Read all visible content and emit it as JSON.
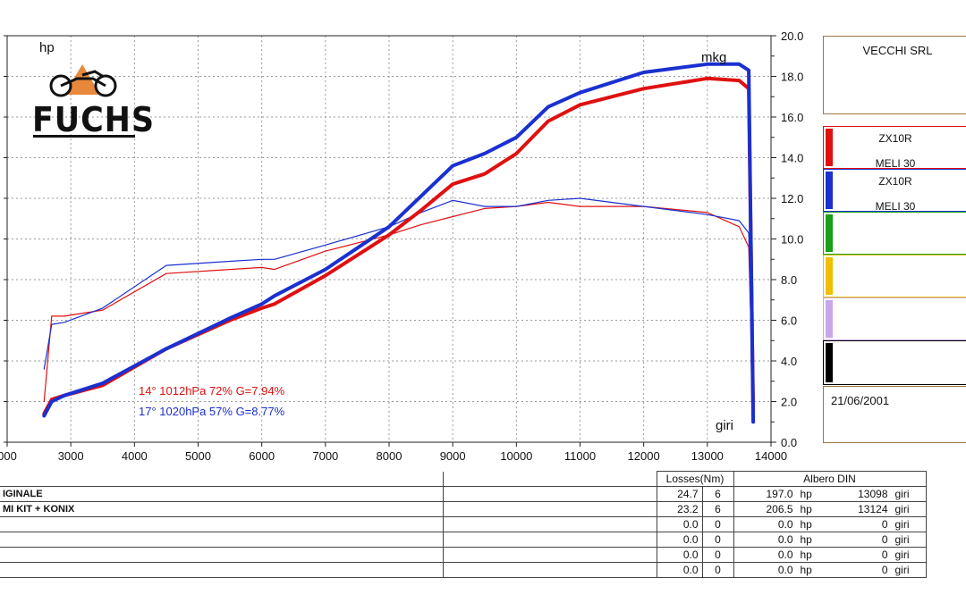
{
  "chart_data": {
    "type": "line",
    "x": [
      2580,
      2700,
      2900,
      3500,
      4500,
      5500,
      6000,
      6200,
      7000,
      8000,
      8500,
      9000,
      9500,
      10000,
      10500,
      11000,
      12000,
      13000,
      13500,
      13650,
      13720
    ],
    "x_axis": {
      "label": "giri",
      "ticks": [
        "000",
        "3000",
        "4000",
        "5000",
        "6000",
        "7000",
        "8000",
        "9000",
        "10000",
        "11000",
        "12000",
        "13000",
        "14000"
      ],
      "range": [
        2000,
        14000
      ]
    },
    "y_left_label": "hp",
    "y_right": {
      "label": "mkg",
      "ticks": [
        "0.0",
        "2.0",
        "4.0",
        "6.0",
        "8.0",
        "10.0",
        "12.0",
        "14.0",
        "16.0",
        "18.0",
        "20.0"
      ],
      "range": [
        0,
        20
      ]
    },
    "series": [
      {
        "color": "#e01010",
        "kind": "power",
        "values": [
          2.0,
          6.2,
          6.2,
          6.5,
          8.3,
          8.5,
          8.6,
          8.5,
          9.4,
          10.2,
          10.7,
          11.1,
          11.5,
          11.6,
          11.8,
          11.6,
          11.6,
          11.3,
          10.6,
          9.6,
          1.5
        ]
      },
      {
        "color": "#1a30d0",
        "kind": "power",
        "values": [
          3.6,
          5.8,
          5.9,
          6.6,
          8.7,
          8.9,
          9.0,
          9.0,
          9.7,
          10.6,
          11.3,
          11.9,
          11.6,
          11.6,
          11.9,
          12.0,
          11.6,
          11.2,
          10.9,
          10.3,
          1.0
        ]
      },
      {
        "color": "#e01010",
        "kind": "torque",
        "values": [
          1.4,
          2.1,
          2.3,
          2.8,
          4.6,
          6.0,
          6.6,
          6.8,
          8.2,
          10.2,
          11.4,
          12.7,
          13.2,
          14.2,
          15.8,
          16.6,
          17.4,
          17.9,
          17.8,
          17.4,
          1.5
        ]
      },
      {
        "color": "#1a30d0",
        "kind": "torque",
        "values": [
          1.3,
          2.0,
          2.3,
          2.9,
          4.6,
          6.1,
          6.8,
          7.2,
          8.5,
          10.6,
          12.1,
          13.6,
          14.2,
          15.0,
          16.5,
          17.2,
          18.2,
          18.6,
          18.6,
          18.3,
          1.0
        ]
      }
    ]
  },
  "header": {
    "hp_label": "hp",
    "mkg_label": "mkg",
    "giri_label": "giri",
    "logo": "FUCHS",
    "logo_icon": "motorcycle-icon"
  },
  "conditions": [
    {
      "text": "14°  1012hPa  72%    G=7.94%",
      "color": "#e01010"
    },
    {
      "text": "17°  1020hPa  57%    G=8.77%",
      "color": "#1a30d0"
    }
  ],
  "side_panel": {
    "company": "VECCHI SRL",
    "legends": [
      {
        "color": "#e01010",
        "line1": "ZX10R",
        "line2": "MELI 30"
      },
      {
        "color": "#1a30d0",
        "line1": "ZX10R",
        "line2": "MELI 30"
      },
      {
        "color": "#18a018",
        "line1": "",
        "line2": ""
      },
      {
        "color": "#f0c000",
        "line1": "",
        "line2": ""
      },
      {
        "color": "#c8a8e8",
        "line1": "",
        "line2": ""
      },
      {
        "color": "#000000",
        "line1": "",
        "line2": ""
      }
    ],
    "date": "21/06/2001"
  },
  "table": {
    "losses_header": "Losses(Nm)",
    "albero_header": "Albero DIN",
    "rows": [
      {
        "name": "IGINALE",
        "loss": "24.7",
        "n": "6",
        "power": "197.0",
        "unit": "hp",
        "rpm": "13098",
        "rpm_unit": "giri"
      },
      {
        "name": "MI KIT + KONIX",
        "loss": "23.2",
        "n": "6",
        "power": "206.5",
        "unit": "hp",
        "rpm": "13124",
        "rpm_unit": "giri"
      },
      {
        "name": "",
        "loss": "0.0",
        "n": "0",
        "power": "0.0",
        "unit": "hp",
        "rpm": "0",
        "rpm_unit": "giri"
      },
      {
        "name": "",
        "loss": "0.0",
        "n": "0",
        "power": "0.0",
        "unit": "hp",
        "rpm": "0",
        "rpm_unit": "giri"
      },
      {
        "name": "",
        "loss": "0.0",
        "n": "0",
        "power": "0.0",
        "unit": "hp",
        "rpm": "0",
        "rpm_unit": "giri"
      },
      {
        "name": "",
        "loss": "0.0",
        "n": "0",
        "power": "0.0",
        "unit": "hp",
        "rpm": "0",
        "rpm_unit": "giri"
      }
    ]
  }
}
